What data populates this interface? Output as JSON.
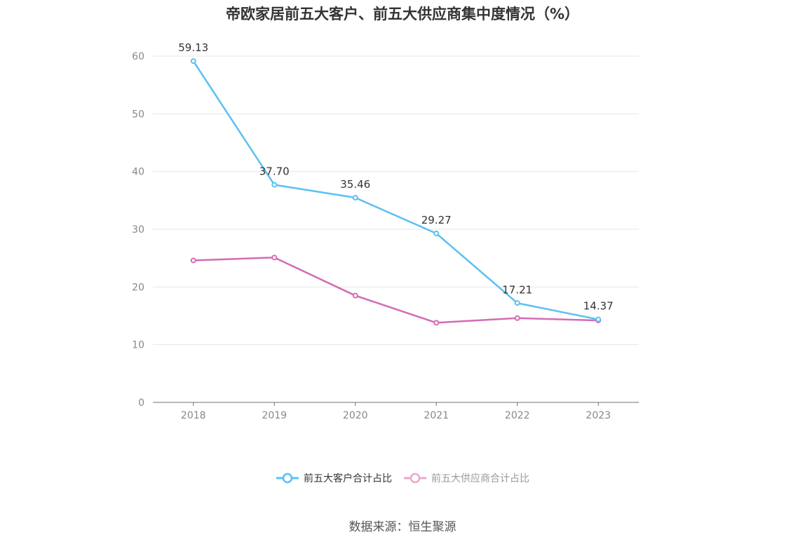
{
  "title": "帝欧家居前五大客户、前五大供应商集中度情况（%）",
  "source": "数据来源：恒生聚源",
  "chart_data": {
    "type": "line",
    "title": "帝欧家居前五大客户、前五大供应商集中度情况（%）",
    "categories": [
      "2018",
      "2019",
      "2020",
      "2021",
      "2022",
      "2023"
    ],
    "ylim": [
      0,
      60
    ],
    "yticks": [
      0,
      10,
      20,
      30,
      40,
      50,
      60
    ],
    "grid": true,
    "legend_position": "bottom",
    "series": [
      {
        "name": "前五大客户合计占比",
        "color": "#5bc0f2",
        "values": [
          59.13,
          37.7,
          35.46,
          29.27,
          17.21,
          14.37
        ],
        "labels": [
          "59.13",
          "37.70",
          "35.46",
          "29.27",
          "17.21",
          "14.37"
        ],
        "show_labels": true
      },
      {
        "name": "前五大供应商合计占比",
        "color": "#d36cb3",
        "legend_color": "#e9a8d2",
        "values": [
          24.6,
          25.1,
          18.5,
          13.8,
          14.6,
          14.2
        ],
        "show_labels": false
      }
    ]
  }
}
